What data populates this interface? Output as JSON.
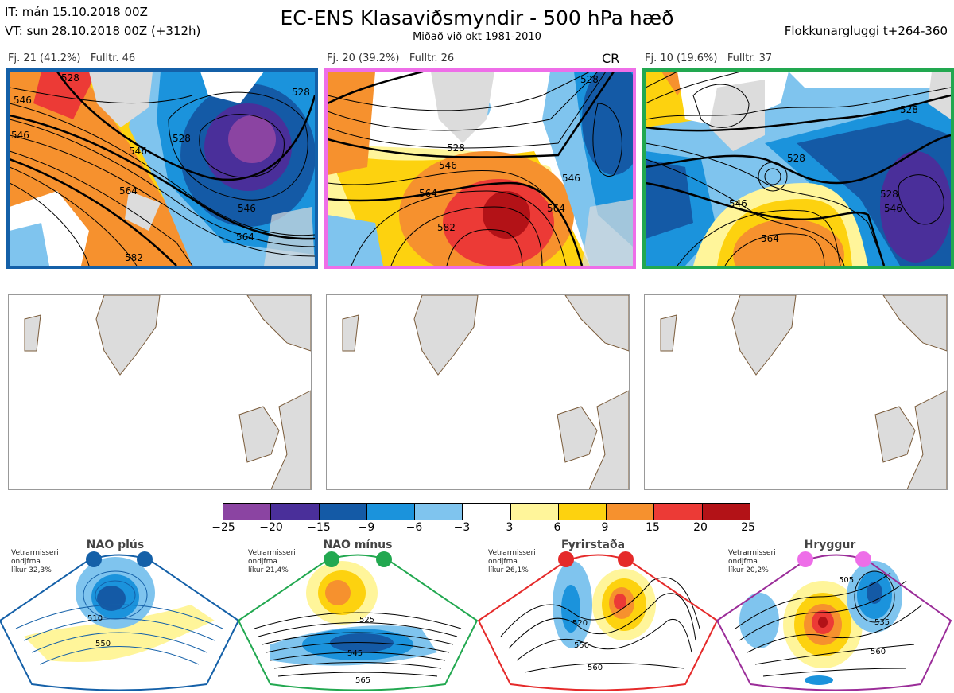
{
  "header": {
    "it_line": "IT: mán 15.10.2018 00Z",
    "vt_line": "VT: sun 28.10.2018 00Z  (+312h)",
    "title": "EC-ENS Klasaviðsmyndir - 500 hPa hæð",
    "subtitle": "Miðað við okt 1981-2010",
    "window": "Flokkunargluggi t+264-360"
  },
  "panels": [
    {
      "label": "Fj. 21 (41.2%)   Fulltr. 46",
      "border": "#1460a8",
      "contours": [
        "546",
        "528",
        "546",
        "564",
        "546",
        "564",
        "528",
        "546",
        "582",
        "528"
      ]
    },
    {
      "label": "Fj. 20 (39.2%)   Fulltr. 26",
      "border": "#ee6ee8",
      "tag": "CR",
      "contours": [
        "528",
        "546",
        "564",
        "582",
        "546",
        "564",
        "528"
      ]
    },
    {
      "label": "Fj. 10 (19.6%)   Fulltr. 37",
      "border": "#22a850",
      "contours": [
        "528",
        "528",
        "546",
        "564",
        "528",
        "546"
      ]
    }
  ],
  "colorbar": {
    "colors": [
      "#8b44a2",
      "#4a2f9a",
      "#145aa6",
      "#1b93dc",
      "#7fc4ee",
      "#ffffff",
      "#fff59a",
      "#fdd20f",
      "#f6912e",
      "#ec3a36",
      "#b31217"
    ],
    "ticks": [
      "−25",
      "−20",
      "−15",
      "−9",
      "−6",
      "−3",
      "3",
      "6",
      "9",
      "15",
      "20",
      "25"
    ]
  },
  "regimes": [
    {
      "name": "NAO plús",
      "note": [
        "Vetrarmisseri",
        "ondjfma",
        "líkur 32,3%"
      ],
      "color": "#1460a8",
      "contours": [
        "510",
        "550"
      ]
    },
    {
      "name": "NAO mínus",
      "note": [
        "Vetrarmisseri",
        "ondjfma",
        "líkur 21,4%"
      ],
      "color": "#22a850",
      "contours": [
        "525",
        "545",
        "565"
      ]
    },
    {
      "name": "Fyrirstaða",
      "note": [
        "Vetrarmisseri",
        "ondjfma",
        "líkur 26,1%"
      ],
      "color": "#e52a2a",
      "contours": [
        "520",
        "550",
        "560"
      ]
    },
    {
      "name": "Hryggur",
      "note": [
        "Vetrarmisseri",
        "ondjfma",
        "líkur 20,2%"
      ],
      "color": "#ee6ee8",
      "contours": [
        "505",
        "535",
        "560"
      ]
    }
  ]
}
